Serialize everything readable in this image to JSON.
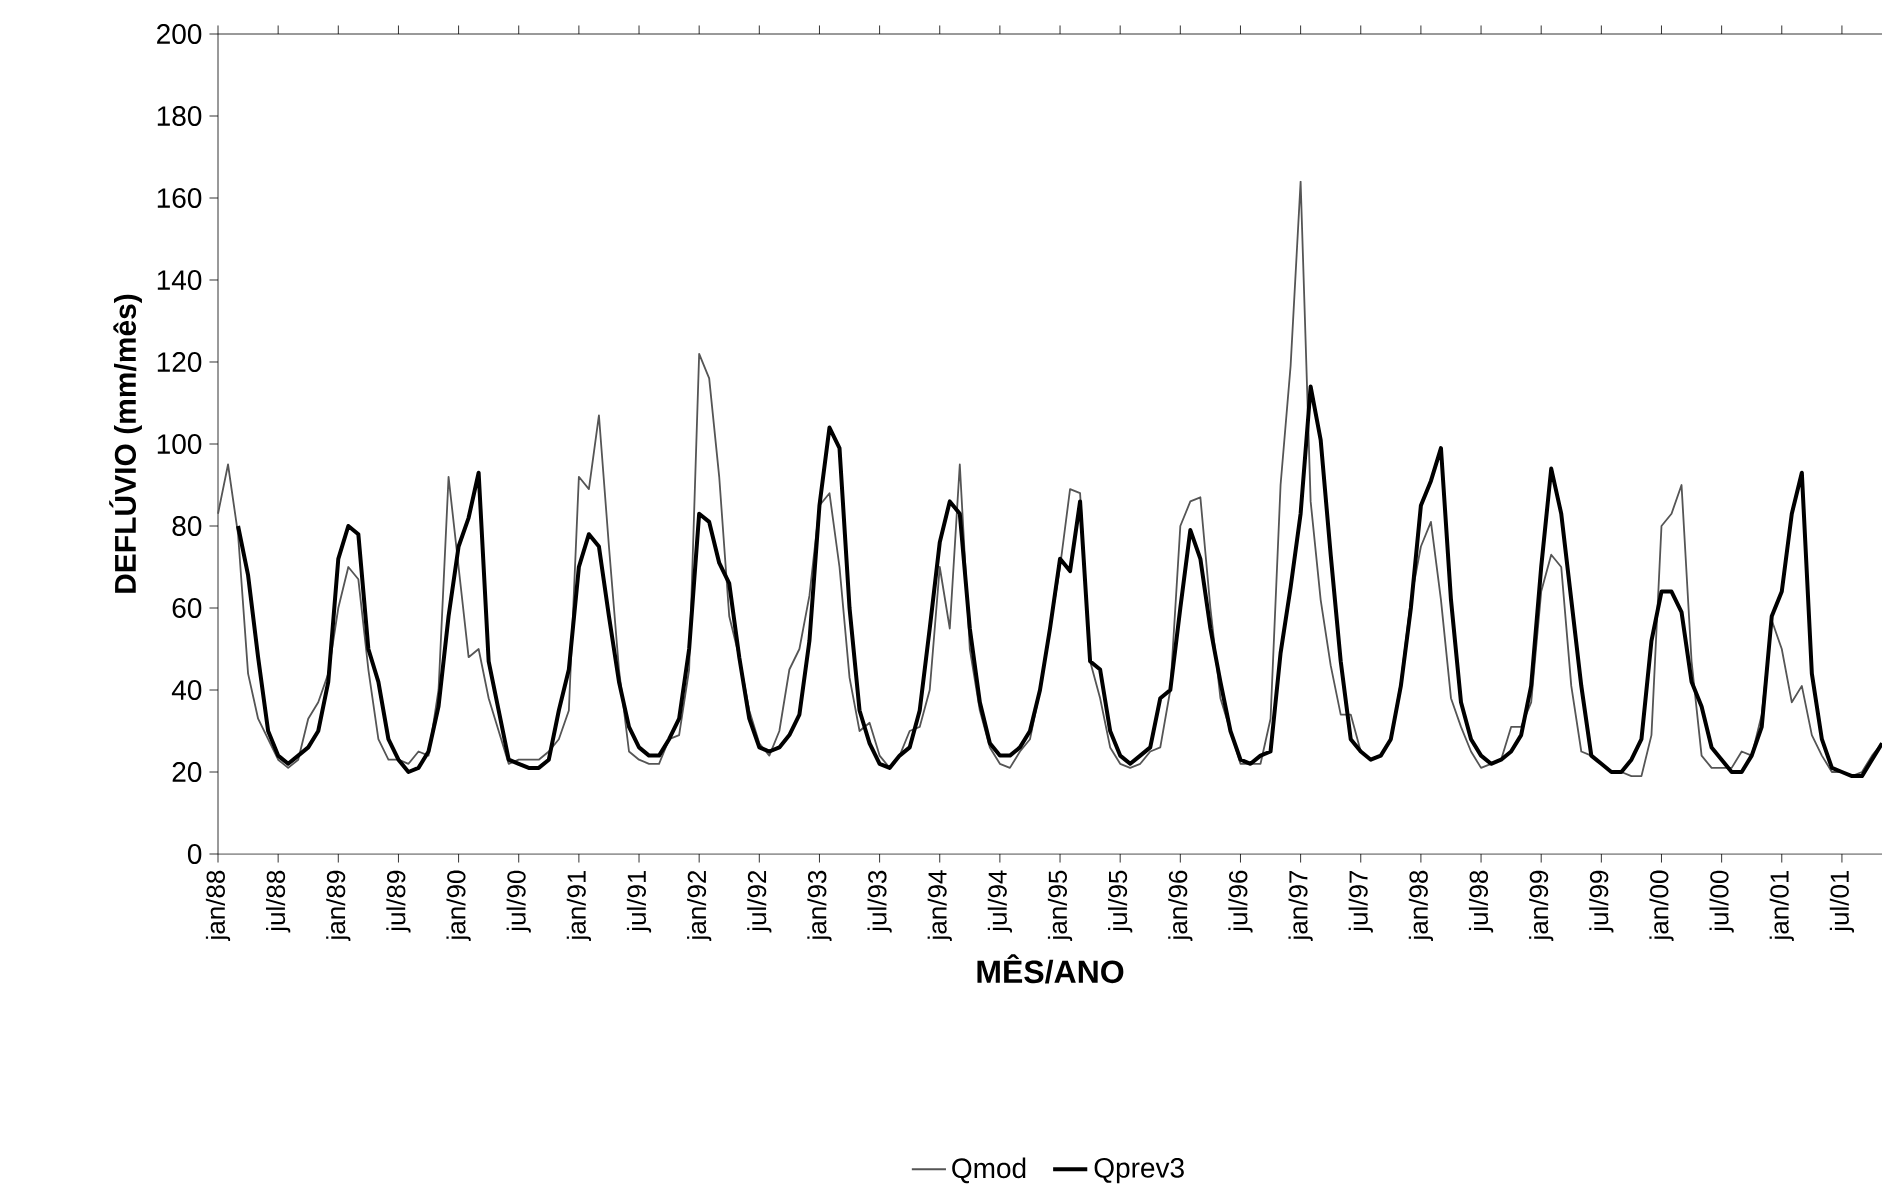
{
  "chart_data": {
    "type": "line",
    "xlabel": "MÊS/ANO",
    "ylabel": "DEFLÚVIO (mm/mês)",
    "categories": [
      "jan/88",
      null,
      null,
      null,
      null,
      null,
      "jul/88",
      null,
      null,
      null,
      null,
      null,
      "jan/89",
      null,
      null,
      null,
      null,
      null,
      "jul/89",
      null,
      null,
      null,
      null,
      null,
      "jan/90",
      null,
      null,
      null,
      null,
      null,
      "jul/90",
      null,
      null,
      null,
      null,
      null,
      "jan/91",
      null,
      null,
      null,
      null,
      null,
      "jul/91",
      null,
      null,
      null,
      null,
      null,
      "jan/92",
      null,
      null,
      null,
      null,
      null,
      "jul/92",
      null,
      null,
      null,
      null,
      null,
      "jan/93",
      null,
      null,
      null,
      null,
      null,
      "jul/93",
      null,
      null,
      null,
      null,
      null,
      "jan/94",
      null,
      null,
      null,
      null,
      null,
      "jul/94",
      null,
      null,
      null,
      null,
      null,
      "jan/95",
      null,
      null,
      null,
      null,
      null,
      "jul/95",
      null,
      null,
      null,
      null,
      null,
      "jan/96",
      null,
      null,
      null,
      null,
      null,
      "jul/96",
      null,
      null,
      null,
      null,
      null,
      "jan/97",
      null,
      null,
      null,
      null,
      null,
      "jul/97",
      null,
      null,
      null,
      null,
      null,
      "jan/98",
      null,
      null,
      null,
      null,
      null,
      "jul/98",
      null,
      null,
      null,
      null,
      null,
      "jan/99",
      null,
      null,
      null,
      null,
      null,
      "jul/99",
      null,
      null,
      null,
      null,
      null,
      "jan/00",
      null,
      null,
      null,
      null,
      null,
      "jul/00",
      null,
      null,
      null,
      null,
      null,
      "jan/01",
      null,
      null,
      null,
      null,
      null,
      "jul/01",
      null,
      null,
      null,
      null
    ],
    "series": [
      {
        "name": "Qmod",
        "color": "#555555",
        "values": [
          83,
          95,
          78,
          44,
          33,
          28,
          23,
          21,
          23,
          33,
          37,
          44,
          60,
          70,
          67,
          45,
          28,
          23,
          23,
          22,
          25,
          24,
          40,
          92,
          70,
          48,
          50,
          38,
          30,
          22,
          23,
          23,
          23,
          25,
          28,
          35,
          92,
          89,
          107,
          75,
          45,
          25,
          23,
          22,
          22,
          28,
          29,
          45,
          122,
          116,
          92,
          58,
          48,
          35,
          27,
          24,
          30,
          45,
          50,
          63,
          85,
          88,
          70,
          43,
          30,
          32,
          24,
          21,
          24,
          30,
          31,
          40,
          70,
          55,
          95,
          50,
          35,
          26,
          22,
          21,
          25,
          28,
          40,
          55,
          70,
          89,
          88,
          47,
          38,
          26,
          22,
          21,
          22,
          25,
          26,
          40,
          80,
          86,
          87,
          60,
          38,
          30,
          22,
          22,
          22,
          33,
          90,
          119,
          164,
          86,
          62,
          46,
          34,
          34,
          25,
          23,
          24,
          28,
          42,
          62,
          75,
          81,
          62,
          38,
          31,
          25,
          21,
          22,
          23,
          31,
          31,
          37,
          64,
          73,
          70,
          41,
          25,
          24,
          22,
          20,
          20,
          19,
          19,
          29,
          80,
          83,
          90,
          47,
          24,
          21,
          21,
          21,
          25,
          24,
          34,
          57,
          50,
          37,
          41,
          29,
          24,
          20,
          20,
          19,
          20,
          24,
          27
        ]
      },
      {
        "name": "Qprev3",
        "color": "#000000",
        "values": [
          null,
          null,
          80,
          68,
          48,
          30,
          24,
          22,
          24,
          26,
          30,
          42,
          72,
          80,
          78,
          50,
          42,
          28,
          23,
          20,
          21,
          25,
          36,
          58,
          75,
          82,
          93,
          47,
          35,
          23,
          22,
          21,
          21,
          23,
          35,
          45,
          70,
          78,
          75,
          58,
          42,
          31,
          26,
          24,
          24,
          28,
          33,
          50,
          83,
          81,
          71,
          66,
          48,
          33,
          26,
          25,
          26,
          29,
          34,
          52,
          85,
          104,
          99,
          60,
          35,
          27,
          22,
          21,
          24,
          26,
          35,
          55,
          76,
          86,
          83,
          55,
          37,
          27,
          24,
          24,
          26,
          30,
          40,
          55,
          72,
          69,
          86,
          47,
          45,
          30,
          24,
          22,
          24,
          26,
          38,
          40,
          60,
          79,
          72,
          55,
          42,
          30,
          23,
          22,
          24,
          25,
          49,
          65,
          83,
          114,
          101,
          73,
          47,
          28,
          25,
          23,
          24,
          28,
          41,
          60,
          85,
          91,
          99,
          62,
          37,
          28,
          24,
          22,
          23,
          25,
          29,
          41,
          70,
          94,
          83,
          62,
          41,
          24,
          22,
          20,
          20,
          23,
          28,
          52,
          64,
          64,
          59,
          42,
          36,
          26,
          23,
          20,
          20,
          24,
          31,
          58,
          64,
          83,
          93,
          44,
          28,
          21,
          20,
          19,
          19,
          23,
          27
        ]
      }
    ],
    "ylim": [
      0,
      200
    ],
    "yticks": [
      0,
      20,
      40,
      60,
      80,
      100,
      120,
      140,
      160,
      180,
      200
    ],
    "grid": false,
    "legend": "bottom",
    "marker": "none",
    "line_style": "solid"
  }
}
